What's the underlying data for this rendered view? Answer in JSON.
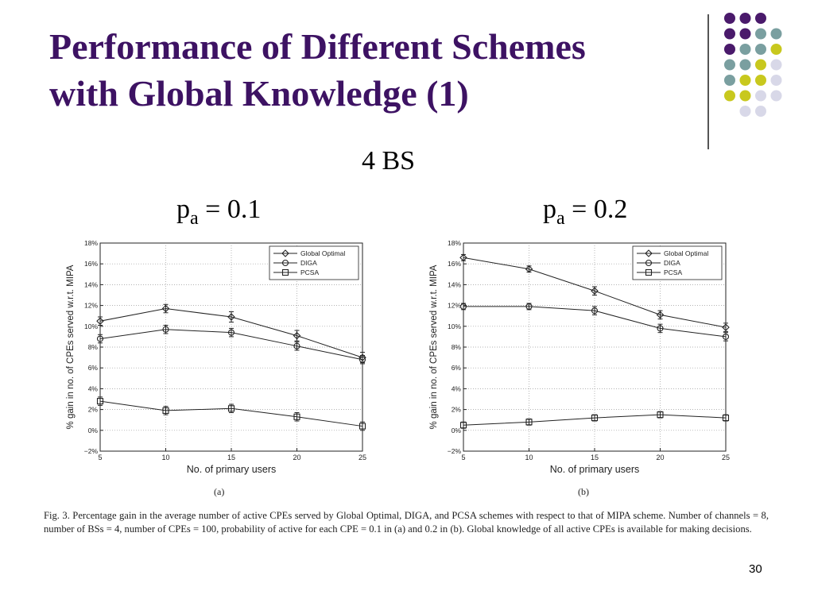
{
  "slide": {
    "title_line1": "Performance of Different Schemes",
    "title_line2": "with Global Knowledge (1)",
    "subtitle": "4 BS",
    "pa_a_base": "p",
    "pa_a_sub": "a",
    "pa_a_rest": " = 0.1",
    "pa_b_base": "p",
    "pa_b_sub": "a",
    "pa_b_rest": " = 0.2",
    "caption": "Fig. 3.   Percentage gain in the average number of active CPEs served by Global Optimal, DIGA, and PCSA schemes with respect to that of MIPA scheme. Number of channels = 8, number of BSs = 4, number of CPEs = 100, probability of active for each CPE = 0.1 in (a) and 0.2 in (b). Global knowledge of all active CPEs is available for making decisions.",
    "page_number": "30",
    "colors": {
      "title": "#3d1263",
      "dot_purple": "#4a1a6b",
      "dot_teal": "#7a9fa0",
      "dot_yellow": "#c8c81e",
      "dot_lavender": "#d8d8e8"
    }
  },
  "chart_data": [
    {
      "type": "line",
      "panel_label": "(a)",
      "xlabel": "No. of primary users",
      "ylabel": "% gain in no. of CPEs served w.r.t. MIPA",
      "x": [
        5,
        10,
        15,
        20,
        25
      ],
      "xticks": [
        "5",
        "10",
        "15",
        "20",
        "25"
      ],
      "yticks": [
        "−2%",
        "0%",
        "2%",
        "4%",
        "6%",
        "8%",
        "10%",
        "12%",
        "14%",
        "16%",
        "18%"
      ],
      "ylim": [
        -2,
        18
      ],
      "grid": true,
      "legend_position": "top-right",
      "series": [
        {
          "name": "Global Optimal",
          "marker": "diamond",
          "values": [
            10.5,
            11.7,
            10.9,
            9.1,
            7.0
          ],
          "err": [
            0.4,
            0.4,
            0.5,
            0.5,
            0.5
          ]
        },
        {
          "name": "DIGA",
          "marker": "circle",
          "values": [
            8.8,
            9.7,
            9.4,
            8.1,
            6.8
          ],
          "err": [
            0.4,
            0.4,
            0.4,
            0.4,
            0.4
          ]
        },
        {
          "name": "PCSA",
          "marker": "square",
          "values": [
            2.8,
            1.9,
            2.1,
            1.3,
            0.4
          ],
          "err": [
            0.4,
            0.4,
            0.4,
            0.4,
            0.4
          ]
        }
      ]
    },
    {
      "type": "line",
      "panel_label": "(b)",
      "xlabel": "No. of primary users",
      "ylabel": "% gain in no. of CPEs served w.r.t. MIPA",
      "x": [
        5,
        10,
        15,
        20,
        25
      ],
      "xticks": [
        "5",
        "10",
        "15",
        "20",
        "25"
      ],
      "yticks": [
        "−2%",
        "0%",
        "2%",
        "4%",
        "6%",
        "8%",
        "10%",
        "12%",
        "14%",
        "16%",
        "18%"
      ],
      "ylim": [
        -2,
        18
      ],
      "grid": true,
      "legend_position": "top-right",
      "series": [
        {
          "name": "Global Optimal",
          "marker": "diamond",
          "values": [
            16.6,
            15.5,
            13.4,
            11.1,
            9.9
          ],
          "err": [
            0.3,
            0.3,
            0.4,
            0.4,
            0.4
          ]
        },
        {
          "name": "DIGA",
          "marker": "circle",
          "values": [
            11.9,
            11.9,
            11.5,
            9.8,
            9.0
          ],
          "err": [
            0.3,
            0.3,
            0.4,
            0.4,
            0.4
          ]
        },
        {
          "name": "PCSA",
          "marker": "square",
          "values": [
            0.5,
            0.8,
            1.2,
            1.5,
            1.2
          ],
          "err": [
            0.3,
            0.3,
            0.3,
            0.3,
            0.3
          ]
        }
      ]
    }
  ]
}
